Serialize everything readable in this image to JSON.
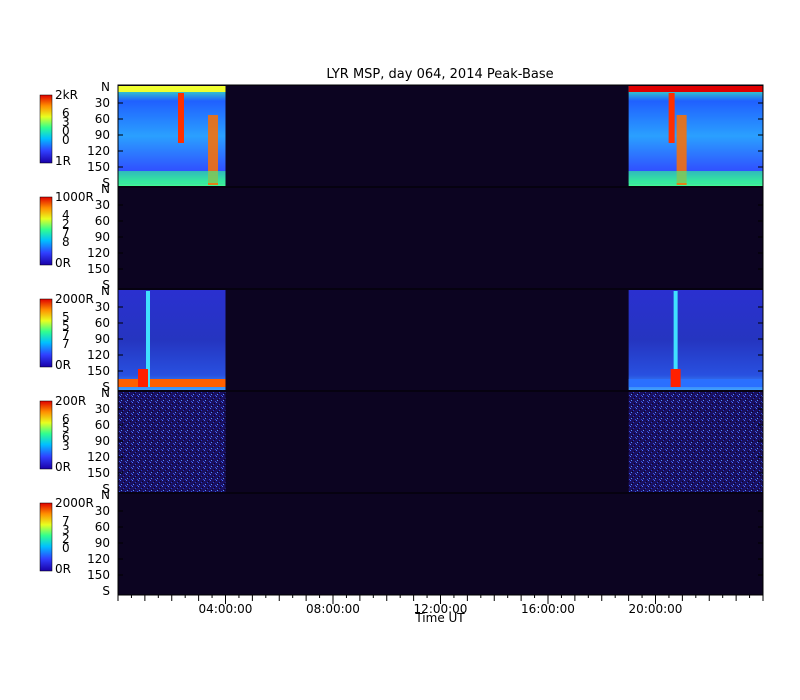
{
  "chart_data": {
    "type": "heatmap",
    "title": "LYR MSP, day 064, 2014 Peak-Base",
    "xlabel": "Time UT",
    "x_range_hours": [
      0,
      24
    ],
    "x_ticks": [
      {
        "hour": 4,
        "label": "04:00:00"
      },
      {
        "hour": 8,
        "label": "08:00:00"
      },
      {
        "hour": 12,
        "label": "12:00:00"
      },
      {
        "hour": 16,
        "label": "16:00:00"
      },
      {
        "hour": 20,
        "label": "20:00:00"
      }
    ],
    "y_axis": {
      "top_label": "N",
      "bottom_label": "S",
      "ticks": [
        "30",
        "60",
        "90",
        "120",
        "150"
      ],
      "range_degrees": [
        0,
        180
      ]
    },
    "colormap": "jet",
    "background_color": "#0c0421",
    "data_intervals_hours": [
      [
        0,
        4.0
      ],
      [
        19.0,
        24
      ]
    ],
    "panels": [
      {
        "colorbar_max": "2kR",
        "colorbar_min": "1R",
        "channel_label": "6300",
        "intensity_level": 0.55,
        "intervals": [
          [
            0,
            4.0
          ],
          [
            19.0,
            24
          ]
        ]
      },
      {
        "colorbar_max": "1000R",
        "colorbar_min": "0R",
        "channel_label": "4278",
        "intensity_level": 0.0,
        "intervals": []
      },
      {
        "colorbar_max": "2000R",
        "colorbar_min": "0R",
        "channel_label": "5577",
        "intensity_level": 0.25,
        "intervals": [
          [
            0,
            4.0
          ],
          [
            19.0,
            24
          ]
        ]
      },
      {
        "colorbar_max": "200R",
        "colorbar_min": "0R",
        "channel_label": "6563",
        "intensity_level": 0.18,
        "intervals": [
          [
            0,
            4.0
          ],
          [
            19.0,
            24
          ]
        ]
      },
      {
        "colorbar_max": "2000R",
        "colorbar_min": "0R",
        "channel_label": "7320",
        "intensity_level": 0.0,
        "intervals": []
      }
    ]
  }
}
